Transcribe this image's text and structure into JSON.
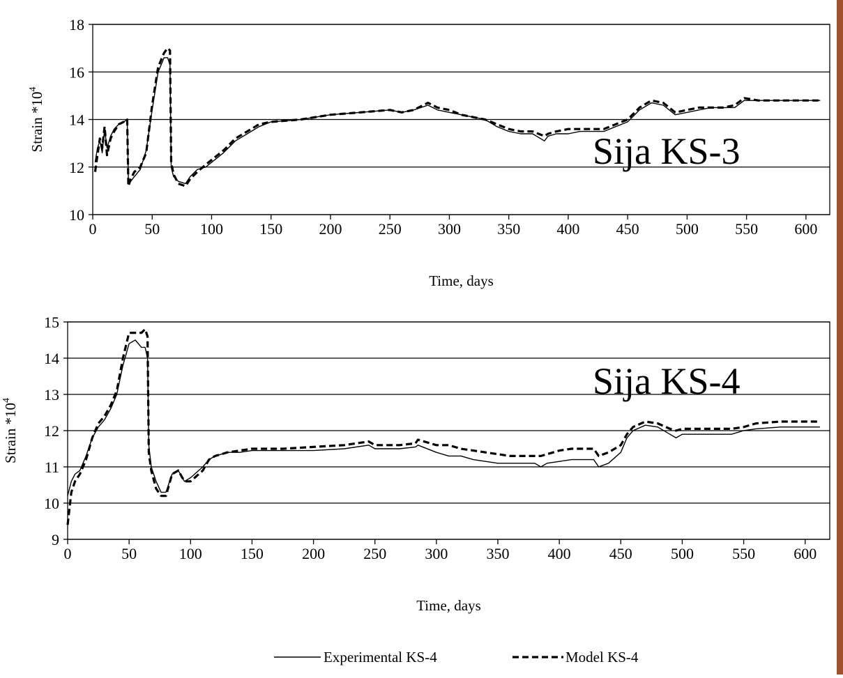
{
  "chart_data": [
    {
      "type": "line",
      "panel_label": "Sija KS-3",
      "xlabel": "Time, days",
      "ylabel": "Strain *10",
      "ylabel_superscript": "4",
      "xlim": [
        0,
        620
      ],
      "ylim": [
        10,
        18
      ],
      "xticks": [
        "0",
        "50",
        "100",
        "150",
        "200",
        "250",
        "300",
        "350",
        "400",
        "450",
        "500",
        "550",
        "600"
      ],
      "yticks": [
        "10",
        "12",
        "14",
        "16",
        "18"
      ],
      "grid": "horizontal",
      "series": [
        {
          "style": "solid",
          "x": [
            2,
            4,
            6,
            8,
            10,
            12,
            15,
            18,
            22,
            26,
            29,
            30,
            32,
            35,
            40,
            45,
            50,
            55,
            60,
            63,
            65,
            66,
            68,
            72,
            78,
            82,
            88,
            95,
            100,
            110,
            120,
            130,
            140,
            150,
            175,
            200,
            225,
            250,
            260,
            270,
            282,
            290,
            300,
            310,
            320,
            330,
            340,
            350,
            360,
            370,
            380,
            383,
            390,
            400,
            410,
            420,
            430,
            440,
            450,
            460,
            470,
            480,
            490,
            500,
            510,
            520,
            530,
            540,
            548,
            560,
            580,
            600,
            612
          ],
          "y": [
            12.2,
            12.8,
            13.1,
            12.6,
            13.6,
            12.8,
            13.3,
            13.6,
            13.8,
            13.9,
            14.0,
            11.5,
            11.4,
            11.6,
            11.9,
            12.7,
            14.4,
            16.0,
            16.6,
            16.6,
            16.3,
            12.0,
            11.6,
            11.4,
            11.3,
            11.6,
            11.9,
            12.0,
            12.2,
            12.6,
            13.1,
            13.4,
            13.7,
            13.9,
            14.0,
            14.2,
            14.3,
            14.4,
            14.3,
            14.4,
            14.6,
            14.4,
            14.3,
            14.2,
            14.1,
            14.0,
            13.7,
            13.5,
            13.4,
            13.4,
            13.1,
            13.3,
            13.4,
            13.4,
            13.5,
            13.5,
            13.5,
            13.7,
            13.9,
            14.4,
            14.7,
            14.6,
            14.2,
            14.3,
            14.4,
            14.5,
            14.5,
            14.5,
            14.8,
            14.8,
            14.8,
            14.8,
            14.8
          ]
        },
        {
          "style": "dashed",
          "x": [
            2,
            4,
            6,
            8,
            10,
            12,
            15,
            18,
            22,
            26,
            29,
            30,
            32,
            35,
            40,
            45,
            50,
            55,
            60,
            63,
            65,
            66,
            68,
            72,
            78,
            82,
            88,
            95,
            100,
            110,
            120,
            130,
            140,
            150,
            175,
            200,
            225,
            250,
            260,
            270,
            282,
            290,
            300,
            310,
            320,
            330,
            340,
            350,
            360,
            370,
            380,
            383,
            390,
            400,
            410,
            420,
            430,
            440,
            450,
            460,
            470,
            480,
            490,
            500,
            510,
            520,
            530,
            540,
            548,
            560,
            580,
            600,
            612
          ],
          "y": [
            11.8,
            12.5,
            13.2,
            12.8,
            13.7,
            12.5,
            13.2,
            13.5,
            13.8,
            13.9,
            14.0,
            11.2,
            11.5,
            11.8,
            12.0,
            12.6,
            14.6,
            16.2,
            16.8,
            17.0,
            16.9,
            12.2,
            11.7,
            11.3,
            11.2,
            11.5,
            11.8,
            12.1,
            12.3,
            12.7,
            13.2,
            13.5,
            13.8,
            13.9,
            14.0,
            14.2,
            14.3,
            14.4,
            14.3,
            14.4,
            14.7,
            14.5,
            14.4,
            14.2,
            14.1,
            14.0,
            13.8,
            13.6,
            13.5,
            13.5,
            13.3,
            13.4,
            13.5,
            13.6,
            13.6,
            13.6,
            13.6,
            13.8,
            14.0,
            14.5,
            14.8,
            14.7,
            14.3,
            14.4,
            14.5,
            14.5,
            14.5,
            14.6,
            14.9,
            14.8,
            14.8,
            14.8,
            14.8
          ]
        }
      ]
    },
    {
      "type": "line",
      "panel_label": "Sija KS-4",
      "xlabel": "Time, days",
      "ylabel": "Strain *10",
      "ylabel_superscript": "4",
      "xlim": [
        0,
        620
      ],
      "ylim": [
        9,
        15
      ],
      "xticks": [
        "0",
        "50",
        "100",
        "150",
        "200",
        "250",
        "300",
        "350",
        "400",
        "450",
        "500",
        "550",
        "600"
      ],
      "yticks": [
        "9",
        "10",
        "11",
        "12",
        "13",
        "14",
        "15"
      ],
      "grid": "horizontal",
      "series": [
        {
          "name": "Experimental KS-4",
          "style": "solid",
          "x": [
            0,
            3,
            6,
            10,
            15,
            20,
            25,
            30,
            35,
            40,
            45,
            50,
            55,
            60,
            63,
            65,
            66,
            68,
            72,
            76,
            80,
            85,
            90,
            95,
            100,
            110,
            115,
            120,
            130,
            140,
            150,
            175,
            200,
            225,
            245,
            250,
            260,
            270,
            283,
            285,
            300,
            310,
            320,
            330,
            340,
            350,
            360,
            370,
            380,
            385,
            390,
            400,
            410,
            420,
            428,
            432,
            440,
            450,
            455,
            460,
            470,
            480,
            490,
            495,
            500,
            510,
            520,
            530,
            540,
            550,
            560,
            580,
            600,
            612
          ],
          "y": [
            10.2,
            10.6,
            10.8,
            10.9,
            11.3,
            11.8,
            12.1,
            12.3,
            12.6,
            13.0,
            13.8,
            14.4,
            14.5,
            14.3,
            14.3,
            14.0,
            11.6,
            11.0,
            10.6,
            10.3,
            10.3,
            10.8,
            10.9,
            10.6,
            10.7,
            11.0,
            11.2,
            11.3,
            11.4,
            11.4,
            11.45,
            11.45,
            11.45,
            11.5,
            11.6,
            11.5,
            11.5,
            11.5,
            11.55,
            11.6,
            11.4,
            11.3,
            11.3,
            11.2,
            11.15,
            11.1,
            11.1,
            11.1,
            11.1,
            11.0,
            11.1,
            11.15,
            11.2,
            11.2,
            11.2,
            11.0,
            11.1,
            11.4,
            11.8,
            12.0,
            12.15,
            12.1,
            11.9,
            11.8,
            11.9,
            11.9,
            11.9,
            11.9,
            11.9,
            12.0,
            12.05,
            12.1,
            12.1,
            12.1
          ]
        },
        {
          "name": "Model KS-4",
          "style": "dashed",
          "x": [
            0,
            3,
            6,
            10,
            15,
            20,
            25,
            30,
            35,
            40,
            45,
            50,
            55,
            60,
            63,
            65,
            66,
            68,
            72,
            76,
            80,
            85,
            90,
            95,
            100,
            110,
            115,
            120,
            130,
            140,
            150,
            175,
            200,
            225,
            245,
            250,
            260,
            270,
            283,
            285,
            300,
            310,
            320,
            330,
            340,
            350,
            360,
            370,
            380,
            385,
            390,
            400,
            410,
            420,
            428,
            432,
            440,
            450,
            455,
            460,
            470,
            480,
            490,
            495,
            500,
            510,
            520,
            530,
            540,
            550,
            560,
            580,
            600,
            612
          ],
          "y": [
            9.4,
            10.3,
            10.6,
            10.8,
            11.2,
            11.8,
            12.2,
            12.4,
            12.7,
            13.1,
            14.0,
            14.7,
            14.7,
            14.7,
            14.8,
            14.6,
            11.4,
            10.9,
            10.4,
            10.2,
            10.2,
            10.8,
            10.9,
            10.6,
            10.6,
            10.9,
            11.2,
            11.3,
            11.4,
            11.45,
            11.5,
            11.5,
            11.55,
            11.6,
            11.7,
            11.6,
            11.6,
            11.6,
            11.65,
            11.75,
            11.6,
            11.6,
            11.5,
            11.45,
            11.4,
            11.35,
            11.3,
            11.3,
            11.3,
            11.3,
            11.35,
            11.45,
            11.5,
            11.5,
            11.5,
            11.3,
            11.4,
            11.6,
            11.9,
            12.1,
            12.25,
            12.2,
            12.05,
            12.0,
            12.05,
            12.05,
            12.05,
            12.05,
            12.05,
            12.1,
            12.2,
            12.25,
            12.25,
            12.25
          ]
        }
      ]
    }
  ],
  "legend": {
    "placement": "bottom",
    "items": [
      "Experimental KS-4",
      "Model KS-4"
    ]
  }
}
